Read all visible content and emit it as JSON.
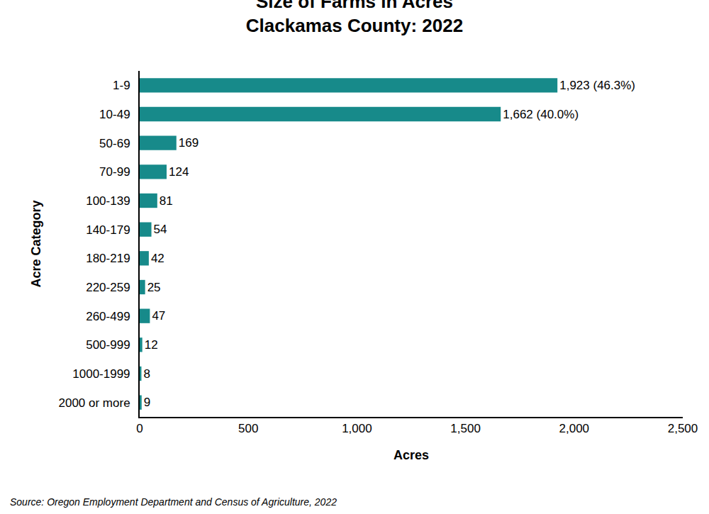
{
  "chart_data": {
    "type": "bar",
    "orientation": "horizontal",
    "title": "Size of Farms in Acres",
    "subtitle": "Clackamas County: 2022",
    "xlabel": "Acres",
    "ylabel": "Acre Category",
    "annotations": [
      "Source: Oregon Employment Department and Census of Agriculture, 2022"
    ],
    "categories": [
      "1-9",
      "10-49",
      "50-69",
      "70-99",
      "100-139",
      "140-179",
      "180-219",
      "220-259",
      "260-499",
      "500-999",
      "1000-1999",
      "2000 or more"
    ],
    "values": [
      1923,
      1662,
      169,
      124,
      81,
      54,
      42,
      25,
      47,
      12,
      8,
      9
    ],
    "value_labels": [
      "1,923 (46.3%)",
      "1,662 (40.0%)",
      "169",
      "124",
      "81",
      "54",
      "42",
      "25",
      "47",
      "12",
      "8",
      "9"
    ],
    "data_labels": true,
    "color": "#178a8a",
    "xlim": [
      0,
      2500
    ],
    "xticks": [
      0,
      500,
      {
        "value": 1000,
        "label": "1,000"
      },
      {
        "value": 1500,
        "label": "1,500"
      },
      {
        "value": 2000,
        "label": "2,000"
      },
      {
        "value": 2500,
        "label": "2,500"
      }
    ],
    "grid": false
  }
}
